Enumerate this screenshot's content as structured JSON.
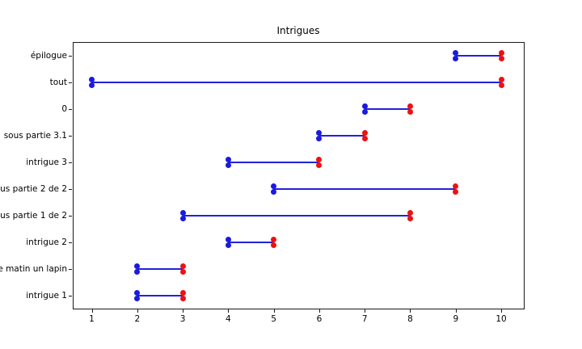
{
  "chart_data": {
    "type": "bar",
    "variant": "horizontal-range-gantt",
    "title": "Intrigues",
    "xlabel": "",
    "ylabel": "",
    "grid": false,
    "legend": false,
    "x_ticks": [
      "1",
      "2",
      "3",
      "4",
      "5",
      "6",
      "7",
      "8",
      "9",
      "10"
    ],
    "xlim": [
      0.55,
      10.45
    ],
    "categories_top_to_bottom": [
      "épilogue",
      "tout",
      "0",
      "sous partie 3.1",
      "intrigue 3",
      "ous partie 2 de 2",
      "ous partie 1 de 2",
      "intrigue 2",
      "e matin un lapin",
      "intrigue 1"
    ],
    "rows": [
      {
        "label": "épilogue",
        "start": 9,
        "end": 10
      },
      {
        "label": "tout",
        "start": 1,
        "end": 10
      },
      {
        "label": "0",
        "start": 7,
        "end": 8
      },
      {
        "label": "sous partie 3.1",
        "start": 6,
        "end": 7
      },
      {
        "label": "intrigue 3",
        "start": 4,
        "end": 6
      },
      {
        "label": "ous partie 2 de 2",
        "start": 5,
        "end": 9
      },
      {
        "label": "ous partie 1 de 2",
        "start": 3,
        "end": 8
      },
      {
        "label": "intrigue 2",
        "start": 4,
        "end": 5
      },
      {
        "label": "e matin un lapin",
        "start": 2,
        "end": 3
      },
      {
        "label": "intrigue 1",
        "start": 2,
        "end": 3
      }
    ],
    "colors": {
      "line": "#2222dd",
      "start_marker": "#1a1ae0",
      "end_marker": "#ee1111",
      "frame": "#1a1a1a",
      "text": "#000000",
      "background": "#ffffff"
    }
  }
}
